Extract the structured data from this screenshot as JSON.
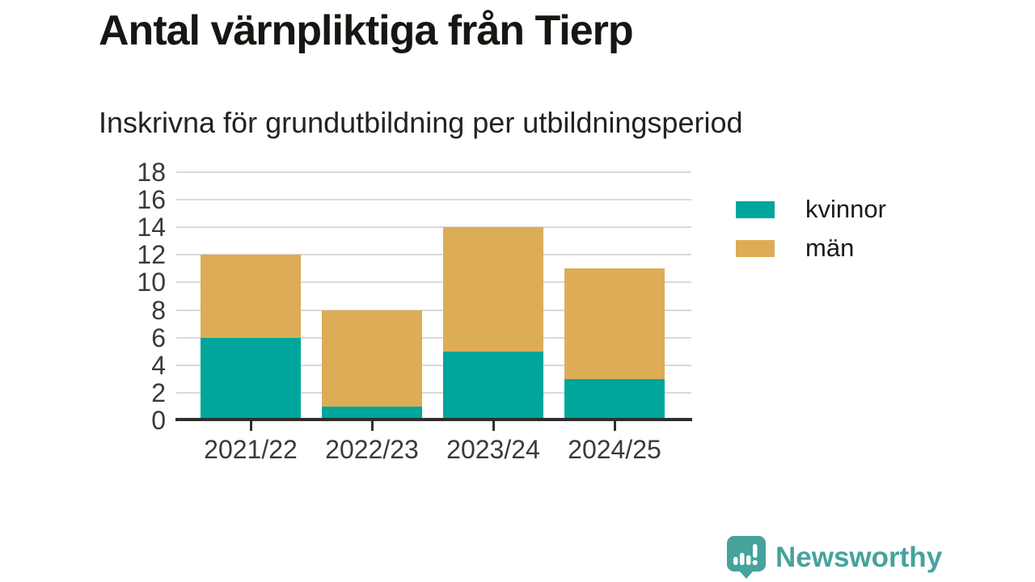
{
  "title": "Antal värnpliktiga från Tierp",
  "subtitle": "Inskrivna för grundutbildning per utbildningsperiod",
  "colors": {
    "kvinnor": "#00a69b",
    "man": "#dcad56",
    "axis": "#2e2e2c",
    "grid": "#d9d9d9",
    "tick_text": "#3a3a38",
    "brand": "#45a39c"
  },
  "chart_data": {
    "type": "bar",
    "stacked": true,
    "title": "Antal värnpliktiga från Tierp",
    "subtitle": "Inskrivna för grundutbildning per utbildningsperiod",
    "categories": [
      "2021/22",
      "2022/23",
      "2023/24",
      "2024/25"
    ],
    "series": [
      {
        "name": "kvinnor",
        "color": "#00a69b",
        "values": [
          6,
          1,
          5,
          3
        ]
      },
      {
        "name": "män",
        "color": "#dcad56",
        "values": [
          6,
          7,
          9,
          8
        ]
      }
    ],
    "totals": [
      12,
      8,
      14,
      11
    ],
    "xlabel": "",
    "ylabel": "",
    "ylim": [
      0,
      18
    ],
    "yticks": [
      0,
      2,
      4,
      6,
      8,
      10,
      12,
      14,
      16,
      18
    ],
    "grid": true,
    "legend_position": "right"
  },
  "footer": {
    "brand_name": "Newsworthy",
    "logo_icon": "newsworthy-bar-chart-bubble-icon"
  }
}
